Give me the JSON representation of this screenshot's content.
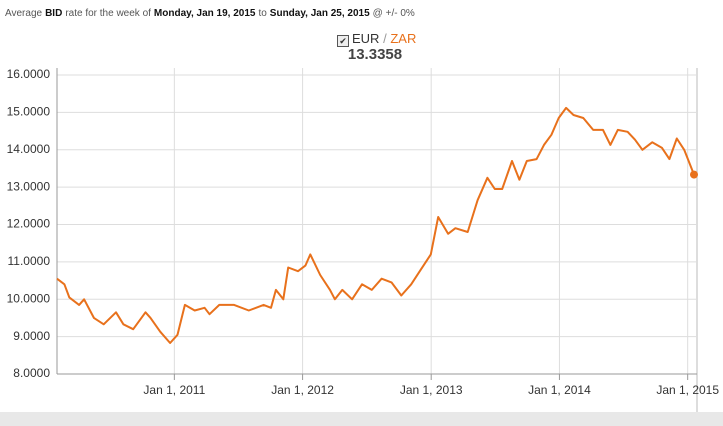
{
  "header": {
    "parts": [
      {
        "text": "Average",
        "bold": false
      },
      {
        "text": "BID",
        "bold": true
      },
      {
        "text": "rate for the week of",
        "bold": false
      },
      {
        "text": "Monday, Jan 19, 2015",
        "bold": true
      },
      {
        "text": "to",
        "bold": false
      },
      {
        "text": "Sunday, Jan 25, 2015",
        "bold": true
      },
      {
        "text": "@ +/- 0%",
        "bold": false
      }
    ]
  },
  "legend": {
    "base": "EUR",
    "separator": "/",
    "quote": "ZAR",
    "rate": "13.3358"
  },
  "chart_data": {
    "type": "line",
    "x": [
      "2010-02-01",
      "2010-02-22",
      "2010-03-08",
      "2010-04-05",
      "2010-04-19",
      "2010-05-17",
      "2010-06-14",
      "2010-07-19",
      "2010-08-09",
      "2010-09-06",
      "2010-10-11",
      "2010-10-25",
      "2010-11-22",
      "2010-12-20",
      "2011-01-10",
      "2011-01-31",
      "2011-02-28",
      "2011-03-28",
      "2011-04-11",
      "2011-05-09",
      "2011-06-20",
      "2011-08-01",
      "2011-09-12",
      "2011-10-03",
      "2011-10-17",
      "2011-11-07",
      "2011-11-21",
      "2011-12-19",
      "2012-01-09",
      "2012-01-23",
      "2012-02-20",
      "2012-03-19",
      "2012-04-02",
      "2012-04-23",
      "2012-05-21",
      "2012-06-18",
      "2012-07-16",
      "2012-08-13",
      "2012-09-10",
      "2012-10-08",
      "2012-11-05",
      "2012-12-03",
      "2012-12-31",
      "2013-01-21",
      "2013-02-18",
      "2013-03-11",
      "2013-04-15",
      "2013-05-13",
      "2013-06-10",
      "2013-07-01",
      "2013-07-22",
      "2013-08-19",
      "2013-09-09",
      "2013-09-30",
      "2013-10-28",
      "2013-11-18",
      "2013-12-09",
      "2013-12-30",
      "2014-01-20",
      "2014-02-10",
      "2014-03-10",
      "2014-04-07",
      "2014-05-05",
      "2014-05-26",
      "2014-06-16",
      "2014-07-14",
      "2014-08-04",
      "2014-08-25",
      "2014-09-22",
      "2014-10-20",
      "2014-11-10",
      "2014-12-01",
      "2014-12-22",
      "2015-01-19"
    ],
    "series": [
      {
        "name": "EUR/ZAR",
        "color": "#e8711c",
        "values": [
          10.55,
          10.4,
          10.05,
          9.85,
          10.0,
          9.5,
          9.33,
          9.65,
          9.33,
          9.2,
          9.65,
          9.5,
          9.13,
          8.83,
          9.05,
          9.85,
          9.7,
          9.77,
          9.6,
          9.85,
          9.85,
          9.7,
          9.85,
          9.77,
          10.25,
          10.0,
          10.85,
          10.75,
          10.9,
          11.2,
          10.65,
          10.25,
          10.0,
          10.25,
          10.0,
          10.4,
          10.25,
          10.55,
          10.45,
          10.1,
          10.4,
          10.8,
          11.2,
          12.2,
          11.75,
          11.9,
          11.8,
          12.65,
          13.25,
          12.95,
          12.95,
          13.7,
          13.2,
          13.7,
          13.75,
          14.13,
          14.4,
          14.85,
          15.12,
          14.93,
          14.85,
          14.53,
          14.53,
          14.13,
          14.53,
          14.48,
          14.27,
          14.0,
          14.2,
          14.05,
          13.75,
          14.3,
          14.0,
          13.3358
        ]
      }
    ],
    "xlim": [
      "2010-02-01",
      "2015-01-19"
    ],
    "xticks": [
      {
        "value": "2011-01-01",
        "label": "Jan 1, 2011"
      },
      {
        "value": "2012-01-01",
        "label": "Jan 1, 2012"
      },
      {
        "value": "2013-01-01",
        "label": "Jan 1, 2013"
      },
      {
        "value": "2014-01-01",
        "label": "Jan 1, 2014"
      },
      {
        "value": "2015-01-01",
        "label": "Jan 1, 2015"
      }
    ],
    "ylim": [
      8,
      16
    ],
    "yticks": [
      {
        "value": 8,
        "label": "8.0000"
      },
      {
        "value": 9,
        "label": "9.0000"
      },
      {
        "value": 10,
        "label": "10.0000"
      },
      {
        "value": 11,
        "label": "11.0000"
      },
      {
        "value": 12,
        "label": "12.0000"
      },
      {
        "value": 13,
        "label": "13.0000"
      },
      {
        "value": 14,
        "label": "14.0000"
      },
      {
        "value": 15,
        "label": "15.0000"
      },
      {
        "value": 16,
        "label": "16.0000"
      }
    ],
    "grid": true
  }
}
